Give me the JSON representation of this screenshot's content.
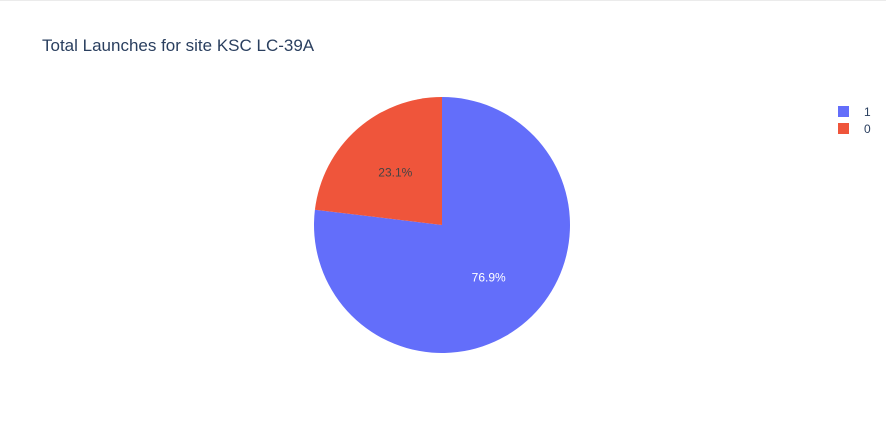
{
  "chart_data": {
    "type": "pie",
    "title": "Total Launches for site KSC LC-39A",
    "slices": [
      {
        "label": "1",
        "percent": 76.9,
        "percent_text": "76.9%",
        "color": "#636efa",
        "text_color": "#ffffff"
      },
      {
        "label": "0",
        "percent": 23.1,
        "percent_text": "23.1%",
        "color": "#ef553b",
        "text_color": "#444444"
      }
    ],
    "legend": {
      "placement": "top-right",
      "entries": [
        {
          "label": "1",
          "color": "#636efa"
        },
        {
          "label": "0",
          "color": "#ef553b"
        }
      ]
    }
  }
}
